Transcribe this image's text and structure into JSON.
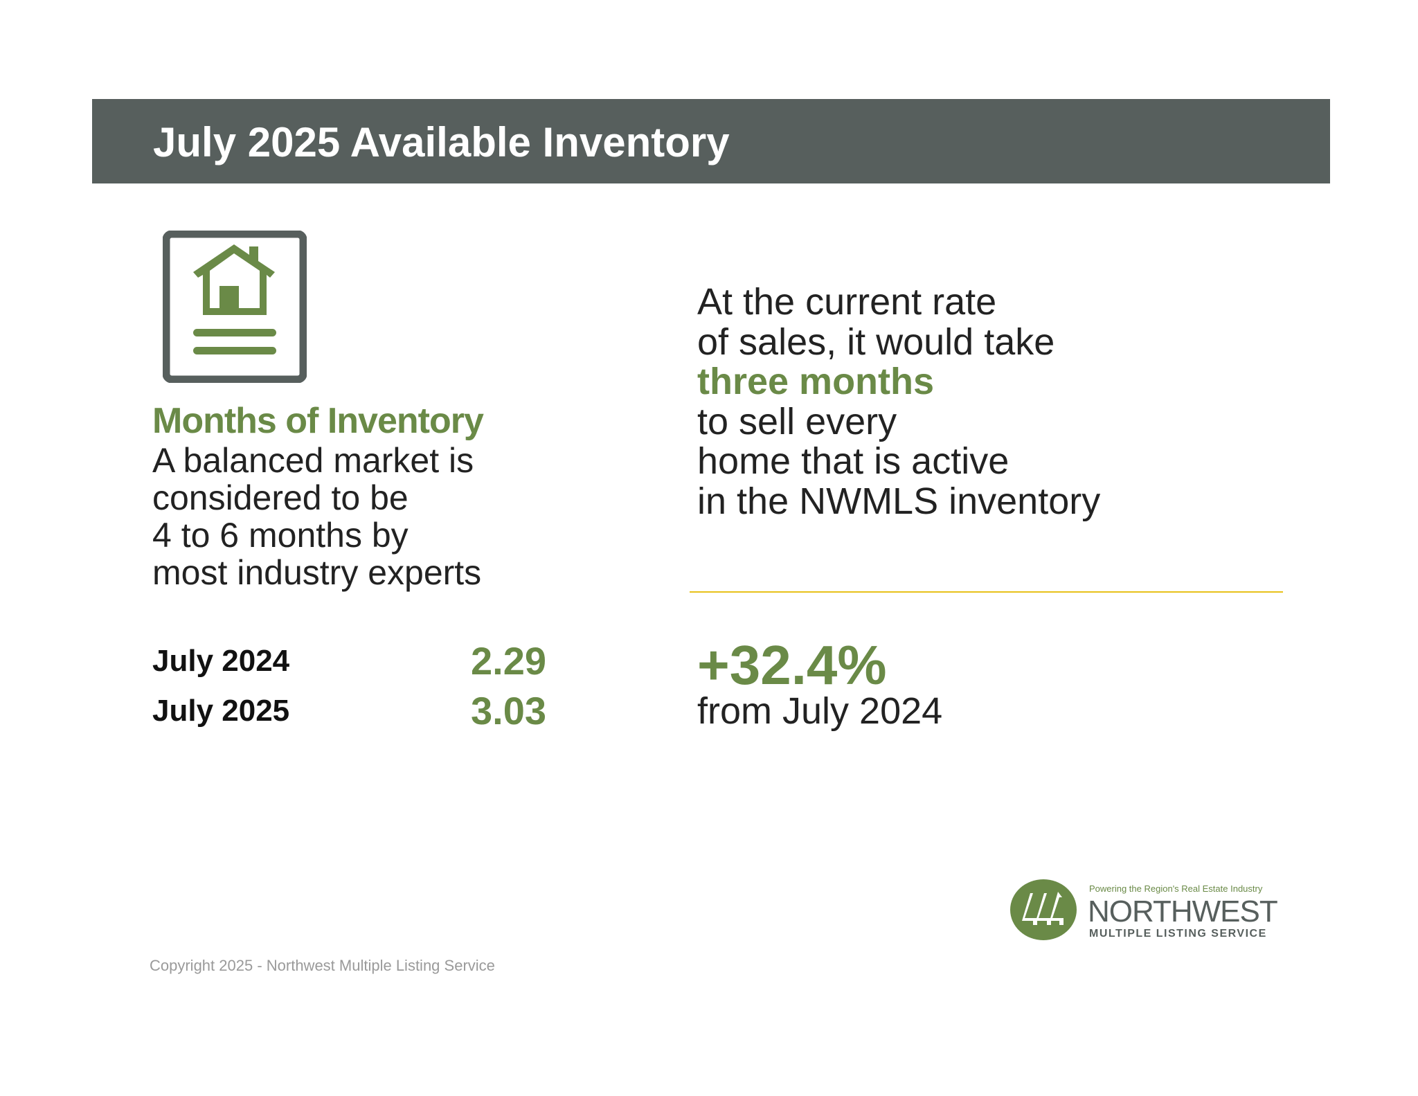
{
  "header": {
    "title": "July 2025 Available Inventory"
  },
  "section": {
    "heading": "Months of Inventory",
    "description_lines": [
      "A balanced market is",
      "considered to be",
      "4 to 6 months by",
      "most industry experts"
    ]
  },
  "comparison": [
    {
      "label": "July 2024",
      "value": "2.29"
    },
    {
      "label": "July 2025",
      "value": "3.03"
    }
  ],
  "summary": {
    "lines_before": [
      "At the current rate",
      "of sales, it would take"
    ],
    "highlight": "three months",
    "lines_after": [
      "to sell every",
      "home that is active",
      "in the NWMLS inventory"
    ]
  },
  "change": {
    "value": "+32.4%",
    "caption": "from July 2024"
  },
  "logo": {
    "tagline": "Powering the Region's Real Estate Industry",
    "name": "NORTHWEST",
    "subname": "MULTIPLE LISTING SERVICE"
  },
  "footer": {
    "copyright": "Copyright 2025 - Northwest Multiple Listing Service"
  },
  "colors": {
    "header": "#575f5d",
    "accent": "#6a8a47",
    "rule": "#e8c11a"
  }
}
